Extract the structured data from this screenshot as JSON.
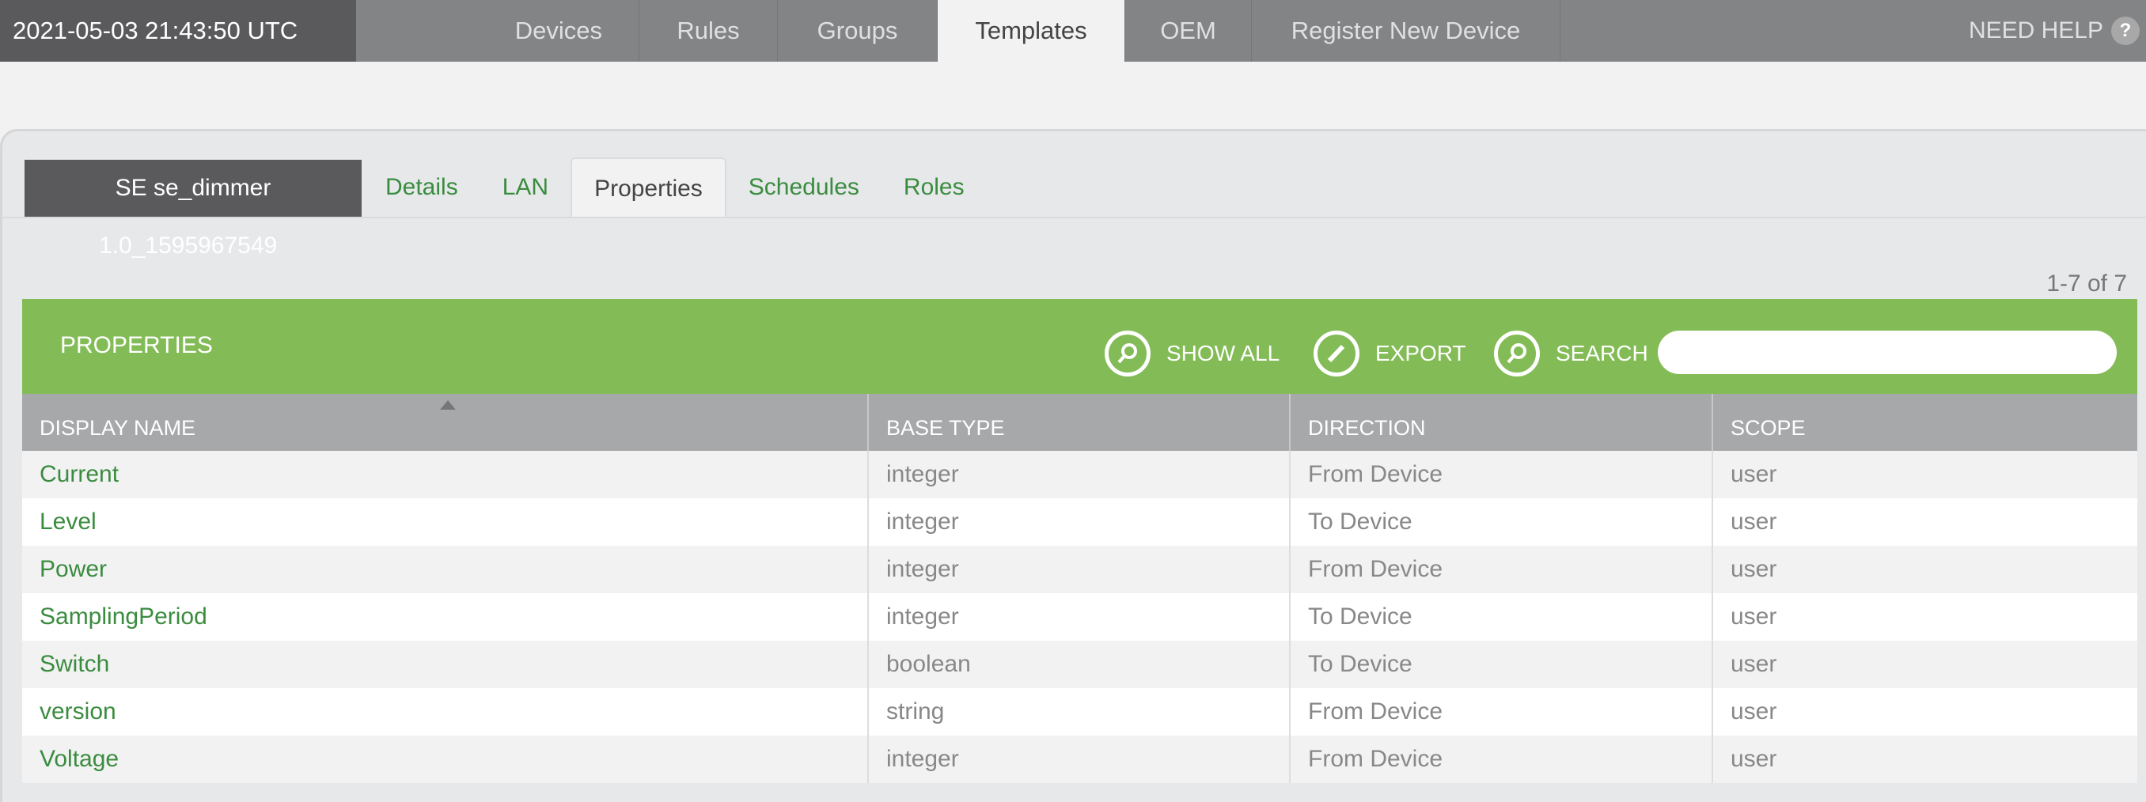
{
  "topbar": {
    "timestamp": "2021-05-03 21:43:50 UTC",
    "nav": [
      {
        "label": "Devices"
      },
      {
        "label": "Rules"
      },
      {
        "label": "Groups"
      },
      {
        "label": "Templates",
        "active": true
      },
      {
        "label": "OEM"
      },
      {
        "label": "Register New Device"
      }
    ],
    "help_label": "NEED HELP",
    "help_icon": "?"
  },
  "template": {
    "name": "SE se_dimmer",
    "version": "1.0_1595967549",
    "tabs": [
      {
        "label": "Details"
      },
      {
        "label": "LAN"
      },
      {
        "label": "Properties",
        "active": true
      },
      {
        "label": "Schedules"
      },
      {
        "label": "Roles"
      }
    ]
  },
  "pagination": "1-7 of 7",
  "properties": {
    "title": "PROPERTIES",
    "show_all": "SHOW ALL",
    "export": "EXPORT",
    "search": "SEARCH",
    "search_value": "",
    "columns": [
      "DISPLAY NAME",
      "BASE TYPE",
      "DIRECTION",
      "SCOPE"
    ],
    "rows": [
      [
        "Current",
        "integer",
        "From Device",
        "user"
      ],
      [
        "Level",
        "integer",
        "To Device",
        "user"
      ],
      [
        "Power",
        "integer",
        "From Device",
        "user"
      ],
      [
        "SamplingPeriod",
        "integer",
        "To Device",
        "user"
      ],
      [
        "Switch",
        "boolean",
        "To Device",
        "user"
      ],
      [
        "version",
        "string",
        "From Device",
        "user"
      ],
      [
        "Voltage",
        "integer",
        "From Device",
        "user"
      ]
    ]
  },
  "colors": {
    "accent_green": "#83bc56",
    "link_green": "#3a8c3f",
    "topbar": "#838486"
  }
}
